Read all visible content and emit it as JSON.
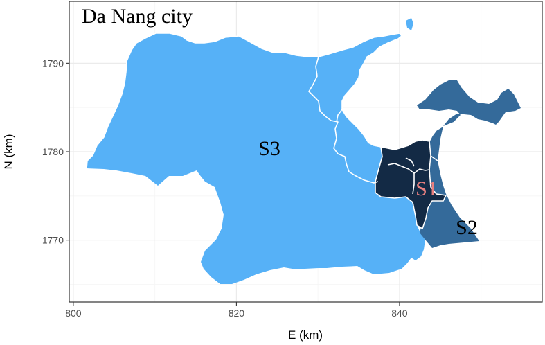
{
  "map": {
    "title": "Da Nang city",
    "x_axis": {
      "label": "E (km)",
      "range": [
        799.5,
        857.5
      ],
      "ticks": [
        800,
        820,
        840
      ],
      "tick_labels": [
        "800",
        "820",
        "840"
      ]
    },
    "y_axis": {
      "label": "N (km)",
      "range": [
        1763,
        1797
      ],
      "ticks": [
        1770,
        1780,
        1790
      ],
      "tick_labels": [
        "1770",
        "1780",
        "1790"
      ]
    },
    "grid": true,
    "regions": [
      {
        "id": "S1",
        "label": "S1",
        "fill_color": "#132a45",
        "label_color": "#e88080"
      },
      {
        "id": "S2",
        "label": "S2",
        "fill_color": "#346a9a",
        "label_color": "#000000"
      },
      {
        "id": "S3",
        "label": "S3",
        "fill_color": "#56b1f7",
        "label_color": "#000000"
      }
    ],
    "colors": {
      "panel_border": "#333333",
      "grid_major": "#ebebeb",
      "grid_minor": "#f5f5f5",
      "district_border": "#ffffff"
    }
  }
}
